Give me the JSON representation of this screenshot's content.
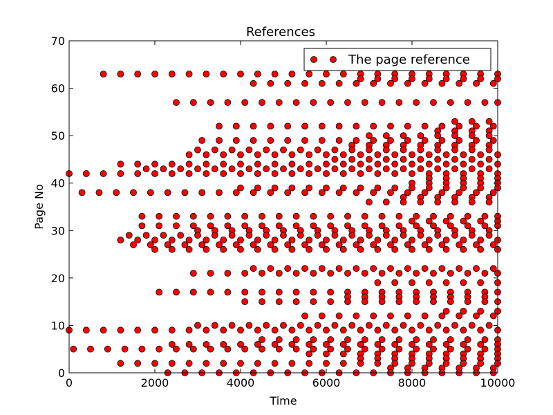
{
  "chart_data": {
    "type": "scatter",
    "title": "References",
    "xlabel": "Time",
    "ylabel": "Page No",
    "xlim": [
      0,
      10000
    ],
    "ylim": [
      0,
      70
    ],
    "xticks": [
      "0",
      "2000",
      "4000",
      "6000",
      "8000",
      "10000"
    ],
    "yticks": [
      "0",
      "10",
      "20",
      "30",
      "40",
      "50",
      "60",
      "70"
    ],
    "grid": false,
    "legend_position": "top-right",
    "marker_color": "#ff0000",
    "marker_edge_color": "#000000",
    "series": [
      {
        "name": "The page reference",
        "pages": [
          {
            "y": 63,
            "x": [
              800,
              1200,
              1600,
              2000,
              2400,
              2800,
              3200,
              3600,
              4000,
              4400,
              4800,
              5200,
              5600,
              6000,
              6400,
              6800,
              7200,
              7600,
              8000,
              8400,
              8800,
              9200,
              9600,
              10000
            ]
          },
          {
            "y": 62,
            "x": [
              6800,
              7200,
              7600,
              8000,
              8400,
              8800,
              9200,
              9600,
              10000
            ]
          },
          {
            "y": 61,
            "x": [
              4300,
              4700,
              5100,
              5500,
              5900,
              6300,
              6700,
              7100,
              7500,
              7900,
              8300,
              8700,
              9100,
              9500,
              9900
            ]
          },
          {
            "y": 57,
            "x": [
              2500,
              2900,
              3300,
              3700,
              4100,
              4500,
              4900,
              5300,
              5700,
              6100,
              6500,
              6900,
              7300,
              7700,
              8100,
              8500,
              8900,
              9300,
              9700,
              10000
            ]
          },
          {
            "y": 53,
            "x": [
              9000,
              9400,
              9800
            ]
          },
          {
            "y": 52,
            "x": [
              3500,
              3900,
              4300,
              4700,
              5100,
              5500,
              5900,
              6300,
              6700,
              7100,
              7500,
              7900,
              8300,
              8700,
              9100,
              9500,
              9900
            ]
          },
          {
            "y": 51,
            "x": [
              8600,
              9000,
              9400,
              9800
            ]
          },
          {
            "y": 50,
            "x": [
              7000,
              7400,
              7800,
              8200,
              8600,
              9000,
              9400,
              9800
            ]
          },
          {
            "y": 49,
            "x": [
              3100,
              3500,
              3900,
              4300,
              4700,
              5100,
              5500,
              5900,
              6300,
              6700,
              7100,
              7500,
              7900,
              8300,
              8700,
              9100,
              9500,
              9900
            ]
          },
          {
            "y": 48,
            "x": [
              6600,
              7000,
              7400,
              7800,
              8200,
              8600,
              9000,
              9400,
              9800
            ]
          },
          {
            "y": 47,
            "x": [
              3000,
              3400,
              3800,
              4200,
              4600,
              5000,
              5400,
              5800,
              6200,
              6600,
              7000,
              7400,
              7800,
              8200,
              8600,
              9000,
              9400,
              9800
            ]
          },
          {
            "y": 46,
            "x": [
              2800,
              3200,
              3600,
              4000,
              4400,
              4800,
              5200,
              5600,
              6000,
              6400,
              6800,
              7200,
              7600,
              8000,
              8400,
              8800,
              9200,
              9600,
              10000
            ]
          },
          {
            "y": 45,
            "x": [
              6200,
              6600,
              7000,
              7400,
              7800,
              8200,
              8600,
              9000,
              9400,
              9800
            ]
          },
          {
            "y": 44,
            "x": [
              1200,
              1600,
              2000,
              2400,
              2800,
              3200,
              3600,
              4000,
              4400,
              4800,
              5200,
              5600,
              6000,
              6400,
              6800,
              7200,
              7600,
              8000,
              8400,
              8800,
              9200,
              9600,
              10000
            ]
          },
          {
            "y": 43,
            "x": [
              1800,
              2200,
              2600,
              3000,
              3400,
              3800,
              4200,
              4600,
              5000,
              5400,
              5800,
              6200,
              6600,
              7000,
              7400,
              7800,
              8200,
              8600,
              9000,
              9400,
              9800
            ]
          },
          {
            "y": 42,
            "x": [
              0,
              400,
              800,
              1200,
              1600,
              2000,
              2400,
              2800,
              3200,
              3600,
              4000,
              4400,
              4800,
              5200,
              5600,
              6000,
              6400,
              6800,
              7200,
              7600,
              8000,
              8400,
              8800,
              9200,
              9600,
              10000
            ]
          },
          {
            "y": 41,
            "x": [
              8400,
              8800,
              9200,
              9600,
              10000
            ]
          },
          {
            "y": 40,
            "x": [
              8000,
              8400,
              8800,
              9200,
              9600,
              10000
            ]
          },
          {
            "y": 39,
            "x": [
              4000,
              4400,
              4800,
              5200,
              5600,
              6000,
              6400,
              6800,
              7200,
              7600,
              8000,
              8400,
              8800,
              9200,
              9600,
              10000
            ]
          },
          {
            "y": 38,
            "x": [
              300,
              700,
              1100,
              1500,
              1900,
              2300,
              2700,
              3100,
              3500,
              3900,
              4300,
              4700,
              5100,
              5500,
              5900,
              6300,
              6700,
              7100,
              7500,
              7900,
              8300,
              8700,
              9100,
              9500,
              9900
            ]
          },
          {
            "y": 37,
            "x": [
              7800,
              8200,
              8600,
              9000,
              9400,
              9800
            ]
          },
          {
            "y": 36,
            "x": [
              7000,
              7400,
              7800,
              8200,
              8600,
              9000,
              9400,
              9800
            ]
          },
          {
            "y": 33,
            "x": [
              1700,
              2100,
              2500,
              2900,
              3300,
              3700,
              4100,
              4500,
              4900,
              5300,
              5700,
              6100,
              6500,
              6900,
              7300,
              7700,
              8100,
              8500,
              8900,
              9300,
              9700,
              10000
            ]
          },
          {
            "y": 32,
            "x": [
              8000,
              8400,
              8800,
              9200,
              9600,
              10000
            ]
          },
          {
            "y": 31,
            "x": [
              1700,
              2100,
              2500,
              2900,
              3300,
              3700,
              4100,
              4500,
              4900,
              5300,
              5700,
              6100,
              6500,
              6900,
              7300,
              7700,
              8100,
              8500,
              8900,
              9300,
              9700,
              10000
            ]
          },
          {
            "y": 30,
            "x": [
              3000,
              3400,
              3800,
              4200,
              4600,
              5000,
              5400,
              5800,
              6200,
              6600,
              7000,
              7400,
              7800,
              8200,
              8600,
              9000,
              9400,
              9800
            ]
          },
          {
            "y": 29,
            "x": [
              1400,
              1800,
              2200,
              2600,
              3000,
              3400,
              3800,
              4200,
              4600,
              5000,
              5400,
              5800,
              6200,
              6600,
              7000,
              7400,
              7800,
              8200,
              8600,
              9000,
              9400,
              9800
            ]
          },
          {
            "y": 28,
            "x": [
              1200,
              1600,
              2000,
              2400,
              2800,
              3200,
              3600,
              4000,
              4400,
              4800,
              5200,
              5600,
              6000,
              6400,
              6800,
              7200,
              7600,
              8000,
              8400,
              8800,
              9200,
              9600,
              10000
            ]
          },
          {
            "y": 27,
            "x": [
              1500,
              1900,
              2300,
              2700,
              3100,
              3500,
              3900,
              4300,
              4700,
              5100,
              5500,
              5900,
              6300,
              6700,
              7100,
              7500,
              7900,
              8300,
              8700,
              9100,
              9500,
              9900
            ]
          },
          {
            "y": 26,
            "x": [
              2000,
              2400,
              2800,
              3200,
              3600,
              4000,
              4400,
              4800,
              5200,
              5600,
              6000,
              6400,
              6800,
              7200,
              7600,
              8000,
              8400,
              8800,
              9200,
              9600,
              10000
            ]
          },
          {
            "y": 22,
            "x": [
              4300,
              4700,
              5100,
              5500,
              5900,
              6300,
              6700,
              7100,
              7500,
              7900,
              8300,
              8700,
              9100,
              9500,
              9900
            ]
          },
          {
            "y": 21,
            "x": [
              2900,
              3300,
              3700,
              4100,
              4500,
              4900,
              5300,
              5700,
              6100,
              6500,
              6900,
              7300,
              7700,
              8100,
              8500,
              8900,
              9300,
              9700,
              10000
            ]
          },
          {
            "y": 19,
            "x": [
              7200,
              7600,
              8000,
              8400,
              8800,
              9200,
              9600,
              10000
            ]
          },
          {
            "y": 17,
            "x": [
              2100,
              2500,
              2900,
              3300,
              3700,
              4100,
              4500,
              4900,
              5300,
              5700,
              6100,
              6500,
              6900,
              7300,
              7700,
              8100,
              8500,
              8900,
              9300,
              9700,
              10000
            ]
          },
          {
            "y": 16,
            "x": [
              6500,
              6900,
              7300,
              7700,
              8100,
              8500,
              8900,
              9300,
              9700
            ]
          },
          {
            "y": 15,
            "x": [
              4100,
              4500,
              4900,
              5300,
              5700,
              6100,
              6500,
              6900,
              7300,
              7700,
              8100,
              8500,
              8900,
              9300,
              9700,
              10000
            ]
          },
          {
            "y": 13,
            "x": [
              8800,
              9200,
              9600,
              10000
            ]
          },
          {
            "y": 12,
            "x": [
              5500,
              5900,
              6300,
              6700,
              7100,
              7500,
              7900,
              8300,
              8700,
              9100,
              9500,
              9900
            ]
          },
          {
            "y": 10,
            "x": [
              3000,
              3400,
              3800,
              4200,
              4600,
              5000,
              5400,
              5800,
              6200,
              6600,
              7000,
              7400,
              7800,
              8200,
              8600,
              9000,
              9400,
              9800
            ]
          },
          {
            "y": 9,
            "x": [
              0,
              400,
              800,
              1200,
              1600,
              2000,
              2400,
              2800,
              3200,
              3600,
              4000,
              4400,
              4800,
              5200,
              5600,
              6000,
              6400,
              6800,
              7200,
              7600,
              8000,
              8400,
              8800,
              9200,
              9600,
              10000
            ]
          },
          {
            "y": 7,
            "x": [
              4500,
              4900,
              5300,
              5700,
              6100,
              6500,
              6900,
              7300,
              7700,
              8100,
              8500,
              8900,
              9300,
              9700,
              10000
            ]
          },
          {
            "y": 6,
            "x": [
              2400,
              2800,
              3200,
              3600,
              4000,
              4400,
              4800,
              5200,
              5600,
              6000,
              6400,
              6800,
              7200,
              7600,
              8000,
              8400,
              8800,
              9200,
              9600,
              10000
            ]
          },
          {
            "y": 5,
            "x": [
              100,
              500,
              900,
              1300,
              1700,
              2100,
              2500,
              2900,
              3300,
              3700,
              4100,
              4500,
              4900,
              5300,
              5700,
              6100,
              6500,
              6900,
              7300,
              7700,
              8100,
              8500,
              8900,
              9300,
              9700,
              10000
            ]
          },
          {
            "y": 4,
            "x": [
              5600,
              6000,
              6400,
              6800,
              7200,
              7600,
              8000,
              8400,
              8800,
              9200,
              9600,
              10000
            ]
          },
          {
            "y": 3,
            "x": [
              6800,
              7200,
              7600,
              8000,
              8400,
              8800,
              9200,
              9600,
              10000
            ]
          },
          {
            "y": 2,
            "x": [
              1200,
              1600,
              2000,
              2400,
              2800,
              3200,
              3600,
              4000,
              4400,
              4800,
              5200,
              5600,
              6000,
              6400,
              6800,
              7200,
              7600,
              8000,
              8400,
              8800,
              9200,
              9600,
              10000
            ]
          },
          {
            "y": 1,
            "x": [
              7500,
              7900,
              8300,
              8700,
              9100,
              9500,
              9900
            ]
          },
          {
            "y": 0,
            "x": [
              2300,
              2700,
              3100,
              3500,
              3900,
              4300,
              4700,
              5100,
              5500,
              5900,
              6300,
              6700,
              7100,
              7500,
              7900,
              8300,
              8700,
              9100,
              9500,
              9900
            ]
          }
        ]
      }
    ]
  }
}
